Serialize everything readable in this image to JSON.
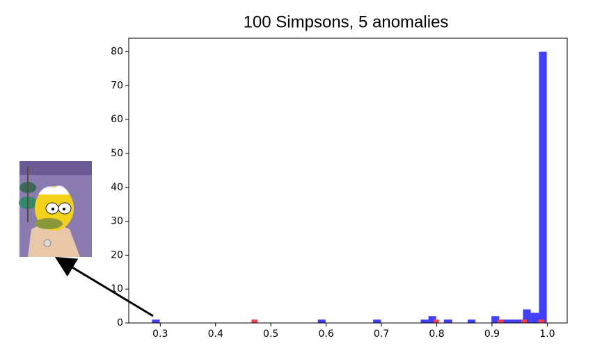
{
  "chart_data": {
    "type": "histogram",
    "title": "100 Simpsons, 5 anomalies",
    "xlim": [
      0.243,
      1.036
    ],
    "ylim": [
      0,
      84
    ],
    "xticks": [
      0.3,
      0.4,
      0.5,
      0.6,
      0.7,
      0.8,
      0.9,
      {
        "value": 1,
        "label": "1.0"
      }
    ],
    "yticks": [
      0,
      10,
      20,
      30,
      40,
      50,
      60,
      70,
      80
    ],
    "series": [
      {
        "color": "#3f3fff",
        "bins": [
          0.285,
          0.299,
          0.314,
          0.328,
          0.342,
          0.356,
          0.371,
          0.385,
          0.399,
          0.414,
          0.428,
          0.442,
          0.456,
          0.471,
          0.485,
          0.499,
          0.513,
          0.528,
          0.542,
          0.556,
          0.571,
          0.585,
          0.599,
          0.613,
          0.628,
          0.642,
          0.656,
          0.671,
          0.685,
          0.699,
          0.713,
          0.728,
          0.742,
          0.756,
          0.771,
          0.785,
          0.799,
          0.813,
          0.828,
          0.842,
          0.856,
          0.87,
          0.885,
          0.899,
          0.913,
          0.928,
          0.942,
          0.956,
          0.97,
          0.985,
          0.999
        ],
        "values": [
          1,
          0,
          0,
          0,
          0,
          0,
          0,
          0,
          0,
          0,
          0,
          0,
          0,
          0,
          0,
          0,
          0,
          0,
          0,
          0,
          0,
          1,
          0,
          0,
          0,
          0,
          0,
          0,
          1,
          0,
          0,
          0,
          0,
          0,
          1,
          2,
          0,
          1,
          0,
          0,
          1,
          0,
          0,
          2,
          1,
          1,
          1,
          4,
          3,
          80
        ]
      },
      {
        "color": "#ff3f3f",
        "bins": [
          0.465,
          0.476,
          0.486,
          0.497,
          0.507,
          0.518,
          0.529,
          0.539,
          0.55,
          0.56,
          0.571,
          0.582,
          0.592,
          0.603,
          0.613,
          0.624,
          0.635,
          0.645,
          0.656,
          0.666,
          0.677,
          0.688,
          0.698,
          0.709,
          0.719,
          0.73,
          0.741,
          0.751,
          0.762,
          0.772,
          0.783,
          0.794,
          0.804,
          0.815,
          0.825,
          0.836,
          0.847,
          0.857,
          0.868,
          0.878,
          0.889,
          0.9,
          0.91,
          0.921,
          0.931,
          0.942,
          0.953,
          0.963,
          0.974,
          0.984,
          0.995
        ],
        "values": [
          1,
          0,
          0,
          0,
          0,
          0,
          0,
          0,
          0,
          0,
          0,
          0,
          0,
          0,
          0,
          0,
          0,
          0,
          0,
          0,
          0,
          0,
          0,
          0,
          0,
          0,
          0,
          0,
          0,
          0,
          0,
          1,
          0,
          0,
          0,
          0,
          0,
          0,
          0,
          0,
          0,
          0,
          1,
          0,
          0,
          0,
          1,
          0,
          0,
          1
        ]
      }
    ]
  }
}
